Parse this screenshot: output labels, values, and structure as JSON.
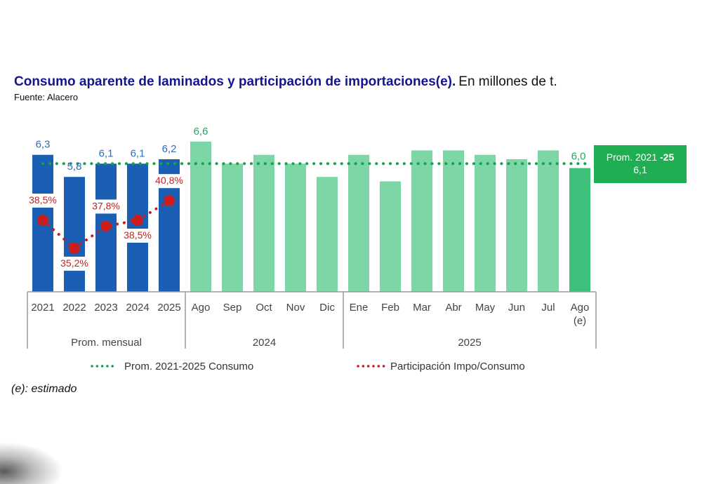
{
  "title": "Consumo aparente de laminados y participación de importaciones(e).",
  "title_unit": "En millones de t.",
  "source": "Fuente: Alacero",
  "footnote": "(e): estimado",
  "prom_box": {
    "line1": "Prom. 2021 ",
    "line1_bold": "-25",
    "line2": "6,1"
  },
  "colors": {
    "annual_bar": "#1a5fb4",
    "monthly_bar": "#7dd6a6",
    "estimated_bar": "#3cc07a",
    "avg_line": "#15a34a",
    "share_line": "#c81e1e",
    "annual_label": "#2e6db8",
    "monthly_label": "#22a860"
  },
  "chart_data": {
    "type": "bar",
    "title": "Consumo aparente de laminados y participación de importaciones(e). En millones de t.",
    "xlabel": "",
    "ylabel": "Millones de t.",
    "ylim": [
      3.2,
      7.0
    ],
    "grid": false,
    "legend_position": "bottom",
    "categories": [
      "2021",
      "2022",
      "2023",
      "2024",
      "2025",
      "Ago",
      "Sep",
      "Oct",
      "Nov",
      "Dic",
      "Ene",
      "Feb",
      "Mar",
      "Abr",
      "May",
      "Jun",
      "Jul",
      "Ago (e)"
    ],
    "category_lines": [
      [
        "2021"
      ],
      [
        "2022"
      ],
      [
        "2023"
      ],
      [
        "2024"
      ],
      [
        "2025"
      ],
      [
        "Ago"
      ],
      [
        "Sep"
      ],
      [
        "Oct"
      ],
      [
        "Nov"
      ],
      [
        "Dic"
      ],
      [
        "Ene"
      ],
      [
        "Feb"
      ],
      [
        "Mar"
      ],
      [
        "Abr"
      ],
      [
        "May"
      ],
      [
        "Jun"
      ],
      [
        "Jul"
      ],
      [
        "Ago",
        "(e)"
      ]
    ],
    "groups": [
      {
        "label": "Prom. mensual",
        "start": 0,
        "end": 4
      },
      {
        "label": "2024",
        "start": 5,
        "end": 9
      },
      {
        "label": "2025",
        "start": 10,
        "end": 17
      }
    ],
    "series": [
      {
        "name": "Consumo aparente",
        "values": [
          6.3,
          5.8,
          6.1,
          6.1,
          6.2,
          6.6,
          6.1,
          6.3,
          6.1,
          5.8,
          6.3,
          5.7,
          6.4,
          6.4,
          6.3,
          6.2,
          6.4,
          6.0
        ],
        "bar_kind": [
          "annual",
          "annual",
          "annual",
          "annual",
          "annual",
          "monthly",
          "monthly",
          "monthly",
          "monthly",
          "monthly",
          "monthly",
          "monthly",
          "monthly",
          "monthly",
          "monthly",
          "monthly",
          "monthly",
          "estimated"
        ],
        "data_labels": [
          "6,3",
          "5,8",
          "6,1",
          "6,1",
          "6,2",
          "6,6",
          "",
          "",
          "",
          "",
          "",
          "",
          "",
          "",
          "",
          "",
          "",
          "6,0"
        ]
      },
      {
        "name": "Participación Impo/Consumo",
        "type": "line",
        "unit": "%",
        "categories": [
          "2021",
          "2022",
          "2023",
          "2024",
          "2025"
        ],
        "values": [
          38.5,
          35.2,
          37.8,
          38.5,
          40.8
        ],
        "data_labels": [
          "38,5%",
          "35,2%",
          "37,8%",
          "38,5%",
          "40,8%"
        ]
      },
      {
        "name": "Prom. 2021-2025 Consumo",
        "type": "line",
        "value": 6.1
      }
    ],
    "legend": [
      {
        "label": "Prom. 2021-2025 Consumo",
        "color_key": "avg_line"
      },
      {
        "label": "Participación Impo/Consumo",
        "color_key": "share_line"
      }
    ]
  }
}
